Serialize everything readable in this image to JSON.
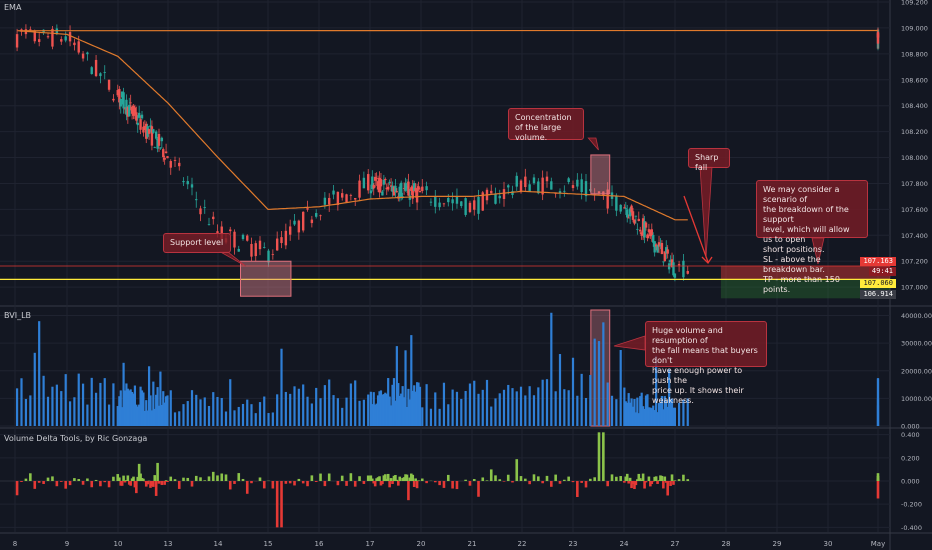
{
  "chart_data": [
    {
      "type": "candlestick",
      "title": "EMA",
      "x_ticks": [
        "8",
        "9",
        "10",
        "13",
        "14",
        "15",
        "16",
        "17",
        "20",
        "21",
        "22",
        "23",
        "24",
        "27",
        "28",
        "29",
        "30",
        "May"
      ],
      "y_ticks": [
        "109.200",
        "109.000",
        "108.800",
        "108.600",
        "108.400",
        "108.200",
        "108.000",
        "107.800",
        "107.600",
        "107.400",
        "107.200",
        "107.000"
      ],
      "ylim": [
        106.87,
        109.2
      ],
      "price_series": {
        "day": [
          8,
          9,
          10,
          13,
          14,
          15,
          16,
          17,
          20,
          21,
          22,
          23,
          24,
          27
        ],
        "close": [
          108.92,
          108.93,
          108.48,
          108.02,
          107.42,
          107.26,
          107.62,
          107.8,
          107.72,
          107.62,
          107.8,
          107.78,
          107.64,
          107.15
        ]
      },
      "ema_series": {
        "day": [
          8,
          9,
          10,
          13,
          14,
          15,
          16,
          17,
          20,
          21,
          22,
          23,
          24,
          27
        ],
        "value": [
          108.98,
          108.95,
          108.78,
          108.42,
          108.0,
          107.6,
          107.62,
          107.68,
          107.7,
          107.7,
          107.74,
          107.72,
          107.7,
          107.52
        ]
      },
      "levels": [
        {
          "name": "support",
          "value": 107.06,
          "color": "#ffeb3b"
        },
        {
          "name": "sl",
          "value": 107.163,
          "color": "#e53935"
        },
        {
          "name": "tp",
          "value": 106.914,
          "color": "#2e7d32"
        }
      ],
      "price_labels": [
        "107.163",
        "49:41",
        "107.060",
        "106.914"
      ],
      "annotations": {
        "support": "Support level",
        "concentration": "Concentration of the large volume.",
        "sharp_fall": "Sharp fall",
        "scenario": [
          "We may consider a scenario of",
          "the breakdown of the support",
          "level, which will allow us to open",
          "short positions.",
          "SL - above the breakdown bar.",
          "TP - more than 150 points."
        ]
      }
    },
    {
      "type": "bar",
      "title": "BVI_LB",
      "y_ticks": [
        "40000.000",
        "30000.000",
        "20000.000",
        "10000.000",
        "0.000"
      ],
      "ylim": [
        0,
        42000
      ],
      "volume_profile": {
        "day": [
          8,
          9,
          10,
          13,
          14,
          15,
          16,
          17,
          20,
          21,
          22,
          23,
          24,
          27
        ],
        "value": [
          13000,
          15000,
          12000,
          10000,
          9000,
          8500,
          12000,
          13000,
          12000,
          12500,
          11000,
          22000,
          10000,
          7500
        ]
      },
      "annotation": [
        "Huge volume and resumption of",
        "the fall means that buyers don't",
        "have enough power to push the",
        "price up. It shows their weakness."
      ]
    },
    {
      "type": "area",
      "title": "Volume Delta Tools, by Ric Gonzaga",
      "y_ticks": [
        "0.400",
        "0.200",
        "0.000",
        "-0.200",
        "-0.400"
      ],
      "ylim": [
        -0.44,
        0.44
      ]
    }
  ]
}
